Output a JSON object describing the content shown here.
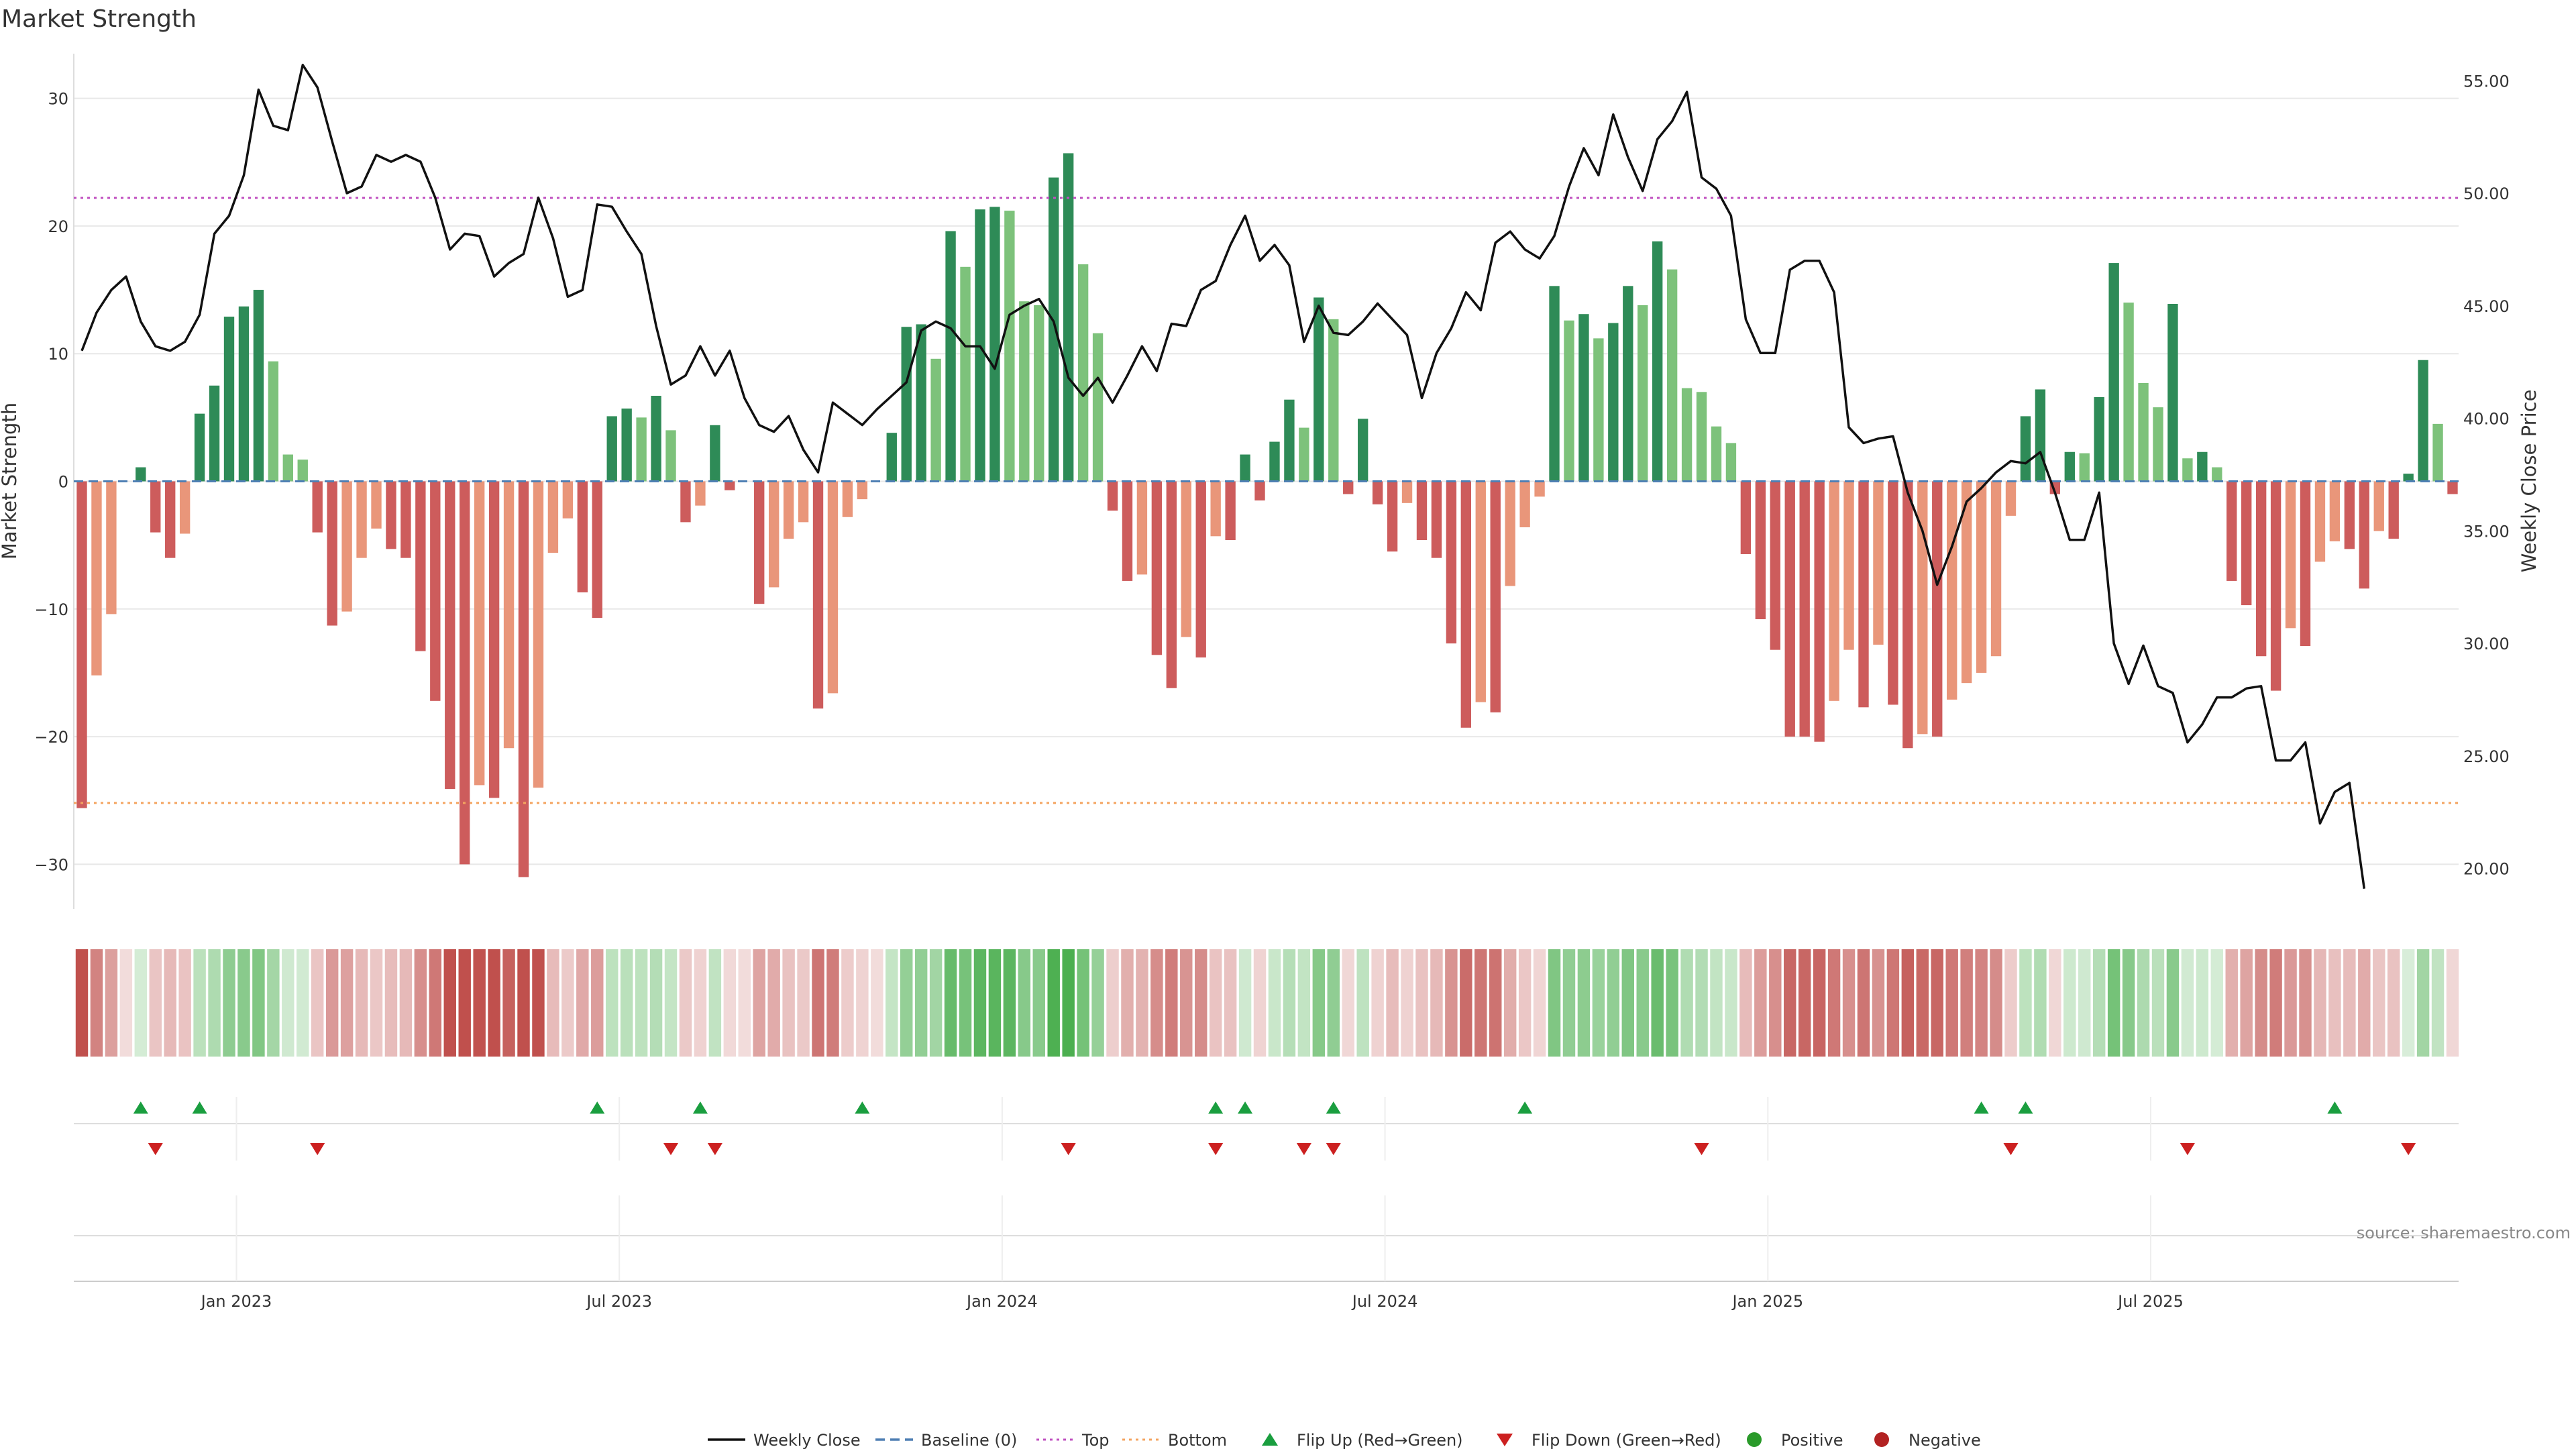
{
  "chart_data": {
    "type": "bar",
    "title": "Market Strength",
    "ylabel": "Market Strength",
    "y2label": "Weekly Close Price",
    "ylim": [
      -33.5,
      33.5
    ],
    "y2lim": [
      18.2,
      56.2
    ],
    "yticks": [
      30,
      20,
      10,
      0,
      -10,
      -20,
      -30
    ],
    "y2ticks": [
      "55.00",
      "50.00",
      "45.00",
      "40.00",
      "35.00",
      "30.00",
      "25.00",
      "20.00"
    ],
    "xticks": [
      "Jan 2023",
      "Jul 2023",
      "Jan 2024",
      "Jul 2024",
      "Jan 2025",
      "Jul 2025"
    ],
    "top_line": 22.2,
    "bottom_line": -25.2,
    "source": "source: sharemaestro.com",
    "strength": [
      -25.6,
      -15.2,
      -10.4,
      0,
      1.1,
      -4,
      -6,
      -4.1,
      5.3,
      7.5,
      12.9,
      13.7,
      15,
      9.4,
      2.1,
      1.7,
      -4,
      -11.3,
      -10.2,
      -6,
      -3.7,
      -5.3,
      -6,
      -13.3,
      -17.2,
      -24.1,
      -30,
      -23.8,
      -24.8,
      -20.9,
      -31,
      -24,
      -5.6,
      -2.9,
      -8.7,
      -10.7,
      5.1,
      5.7,
      5,
      6.7,
      4,
      -3.2,
      -1.9,
      4.4,
      -0.7,
      0,
      -9.6,
      -8.3,
      -4.5,
      -3.2,
      -17.8,
      -16.6,
      -2.8,
      -1.4,
      0,
      3.8,
      12.1,
      12.3,
      9.6,
      19.6,
      16.8,
      21.3,
      21.5,
      21.2,
      14.1,
      13.8,
      23.8,
      25.7,
      17,
      11.6,
      -2.3,
      -7.8,
      -7.3,
      -13.6,
      -16.2,
      -12.2,
      -13.8,
      -4.3,
      -4.6,
      2.1,
      -1.5,
      3.1,
      6.4,
      4.2,
      14.4,
      12.7,
      -1,
      4.9,
      -1.8,
      -5.5,
      -1.7,
      -4.6,
      -6,
      -12.7,
      -19.3,
      -17.3,
      -18.1,
      -8.2,
      -3.6,
      -1.2,
      15.3,
      12.6,
      13.1,
      11.2,
      12.4,
      15.3,
      13.8,
      18.8,
      16.6,
      7.3,
      7,
      4.3,
      3,
      -5.7,
      -10.8,
      -13.2,
      -20,
      -20,
      -20.4,
      -17.2,
      -13.2,
      -17.7,
      -12.8,
      -17.5,
      -20.9,
      -19.8,
      -20,
      -17.1,
      -15.8,
      -15,
      -13.7,
      -2.7,
      5.1,
      7.2,
      -1,
      2.3,
      2.2,
      6.6,
      17.1,
      14,
      7.7,
      5.8,
      13.9,
      1.8,
      2.3,
      1.1,
      -7.8,
      -9.7,
      -13.7,
      -16.4,
      -11.5,
      -12.9,
      -6.3,
      -4.7,
      -5.3,
      -8.4,
      -3.9,
      -4.5,
      0.6,
      9.5,
      4.5,
      -1
    ],
    "close": [
      43.0,
      44.7,
      45.7,
      46.3,
      44.3,
      43.2,
      43.0,
      43.4,
      44.6,
      48.2,
      49.0,
      50.8,
      54.6,
      53.0,
      52.8,
      55.7,
      54.7,
      52.3,
      50.0,
      50.3,
      51.7,
      51.4,
      51.7,
      51.4,
      49.8,
      47.5,
      48.2,
      48.1,
      46.3,
      46.9,
      47.3,
      49.8,
      48.0,
      45.4,
      45.7,
      49.5,
      49.4,
      48.3,
      47.3,
      44.1,
      41.5,
      41.9,
      43.2,
      41.9,
      43.0,
      40.9,
      39.7,
      39.4,
      40.1,
      38.6,
      37.6,
      40.7,
      40.2,
      39.7,
      40.4,
      41.0,
      41.6,
      43.9,
      44.3,
      44.0,
      43.2,
      43.2,
      42.2,
      44.6,
      45.0,
      45.3,
      44.3,
      41.8,
      41.0,
      41.8,
      40.7,
      41.9,
      43.2,
      42.1,
      44.2,
      44.1,
      45.7,
      46.1,
      47.7,
      49.0,
      47.0,
      47.7,
      46.8,
      43.4,
      45.0,
      43.8,
      43.7,
      44.3,
      45.1,
      44.4,
      43.7,
      40.9,
      42.9,
      44.0,
      45.6,
      44.8,
      47.8,
      48.3,
      47.5,
      47.1,
      48.1,
      50.3,
      52.0,
      50.8,
      53.5,
      51.6,
      50.1,
      52.4,
      53.2,
      54.5,
      50.7,
      50.2,
      49.0,
      44.4,
      42.9,
      42.9,
      46.6,
      47.0,
      47.0,
      45.6,
      39.6,
      38.9,
      39.1,
      39.2,
      36.7,
      35.0,
      32.6,
      34.3,
      36.3,
      36.9,
      37.6,
      38.1,
      38.0,
      38.5,
      36.7,
      34.6,
      34.6,
      36.7,
      30.0,
      28.2,
      29.9,
      28.1,
      27.8,
      25.6,
      26.4,
      27.6,
      27.6,
      28.0,
      28.1,
      24.8,
      24.8,
      25.6,
      22.0,
      23.4,
      23.8,
      19.1
    ],
    "flip_up": [
      4,
      8,
      35,
      42,
      53,
      77,
      79,
      85,
      98,
      129,
      132,
      153
    ],
    "flip_down": [
      5,
      16,
      40,
      43,
      67,
      77,
      83,
      85,
      110,
      131,
      143,
      158
    ],
    "legend": [
      "Weekly Close",
      "Baseline (0)",
      "Top",
      "Bottom",
      "Flip Up (Red→Green)",
      "Flip Down (Green→Red)",
      "Positive",
      "Negative"
    ],
    "colors": {
      "pos_strong": "#2e8b57",
      "pos_light": "#7dc27b",
      "neg_strong": "#cd5c5c",
      "neg_light": "#e9967a",
      "top": "#c050c0",
      "bottom": "#f4a460",
      "baseline": "#4f7fb4",
      "flip_up": "#1a9e3f",
      "flip_down": "#cc2020",
      "positive_dot": "#2a9a2a",
      "negative_dot": "#b22222"
    }
  }
}
